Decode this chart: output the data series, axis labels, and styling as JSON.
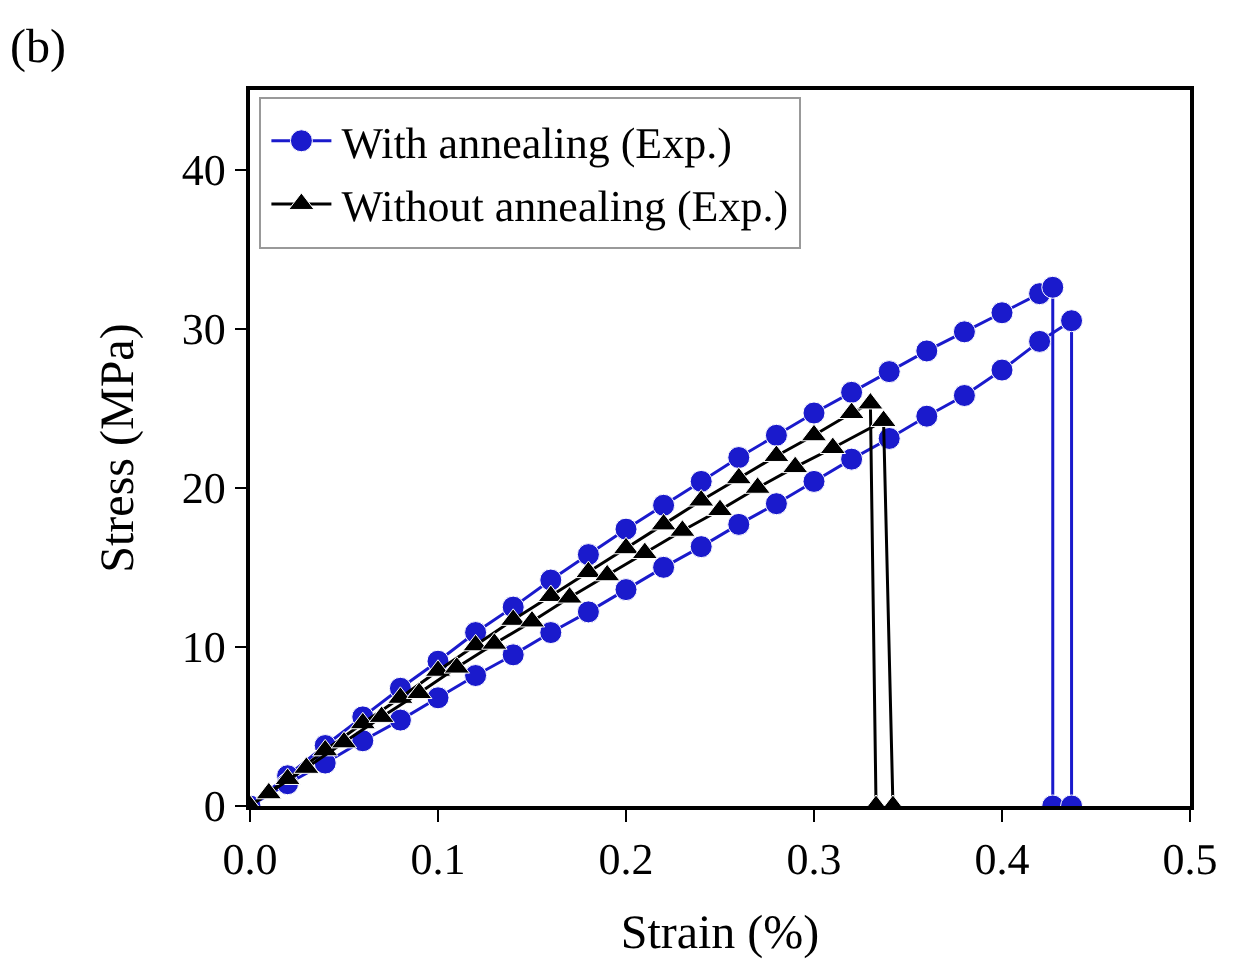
{
  "chart_data": {
    "type": "line",
    "xlabel": "Strain (%)",
    "ylabel": "Stress (MPa)",
    "annotations": [
      "(b)"
    ],
    "xlim": [
      0,
      0.5
    ],
    "xticks": [
      {
        "value": 0,
        "label": "0.0"
      },
      0.1,
      0.2,
      0.3,
      0.4,
      0.5
    ],
    "ylim": [
      0,
      45
    ],
    "yticks": [
      0,
      10,
      20,
      30,
      40
    ],
    "grid": false,
    "legend": "top left",
    "line_style": "solid",
    "series": [
      {
        "name": "With annealing (Exp.)",
        "color": "#1a1acc",
        "marker": "circle",
        "x": [
          0,
          0.02,
          0.04,
          0.06,
          0.08,
          0.1,
          0.12,
          0.14,
          0.16,
          0.18,
          0.2,
          0.22,
          0.24,
          0.26,
          0.28,
          0.3,
          0.32,
          0.34,
          0.36,
          0.38,
          0.4,
          0.42,
          0.427,
          0.427
        ],
        "values": [
          0,
          1.9,
          3.8,
          5.6,
          7.4,
          9.1,
          10.9,
          12.5,
          14.2,
          15.8,
          17.4,
          18.9,
          20.4,
          21.9,
          23.3,
          24.7,
          26,
          27.3,
          28.6,
          29.8,
          31,
          32.2,
          32.6,
          0
        ]
      },
      {
        "color": "#1a1acc",
        "marker": "circle",
        "x": [
          0,
          0.02,
          0.04,
          0.06,
          0.08,
          0.1,
          0.12,
          0.14,
          0.16,
          0.18,
          0.2,
          0.22,
          0.24,
          0.26,
          0.28,
          0.3,
          0.32,
          0.34,
          0.36,
          0.38,
          0.4,
          0.42,
          0.437,
          0.437
        ],
        "values": [
          0,
          1.4,
          2.7,
          4.1,
          5.4,
          6.8,
          8.2,
          9.5,
          10.9,
          12.2,
          13.6,
          15,
          16.3,
          17.7,
          19,
          20.4,
          21.8,
          23.1,
          24.5,
          25.8,
          27.4,
          29.2,
          30.5,
          0
        ]
      },
      {
        "name": "Without annealing (Exp.)",
        "color": "#000000",
        "marker": "triangle",
        "x": [
          0,
          0.02,
          0.04,
          0.06,
          0.08,
          0.1,
          0.12,
          0.14,
          0.16,
          0.18,
          0.2,
          0.22,
          0.24,
          0.26,
          0.28,
          0.3,
          0.32,
          0.33,
          0.333
        ],
        "values": [
          0,
          1.7,
          3.5,
          5.2,
          6.8,
          8.5,
          10.1,
          11.7,
          13.2,
          14.7,
          16.2,
          17.7,
          19.2,
          20.6,
          22,
          23.3,
          24.7,
          25.3,
          0
        ]
      },
      {
        "color": "#000000",
        "marker": "triangle",
        "x": [
          0,
          0.01,
          0.03,
          0.05,
          0.07,
          0.09,
          0.11,
          0.13,
          0.15,
          0.17,
          0.19,
          0.21,
          0.23,
          0.25,
          0.27,
          0.29,
          0.31,
          0.337,
          0.342
        ],
        "values": [
          0,
          0.8,
          2.4,
          4,
          5.6,
          7.1,
          8.7,
          10.2,
          11.6,
          13.1,
          14.5,
          15.9,
          17.3,
          18.6,
          20,
          21.3,
          22.5,
          24.2,
          0
        ]
      }
    ]
  }
}
